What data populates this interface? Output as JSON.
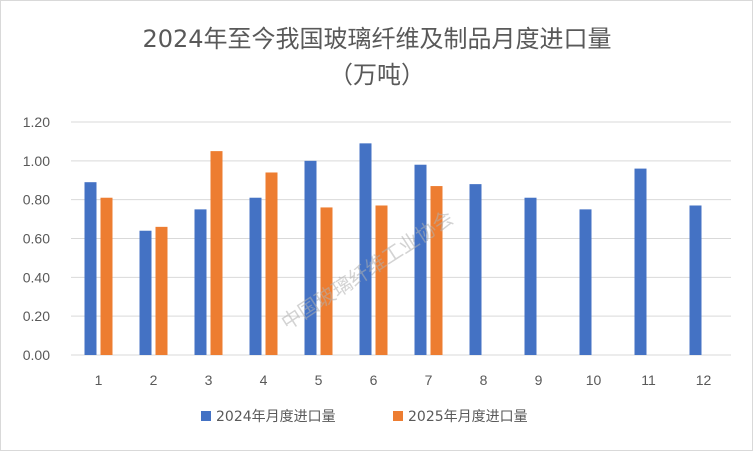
{
  "chart_data": {
    "type": "bar",
    "title": "2024年至今我国玻璃纤维及制品月度进口量",
    "subtitle": "（万吨）",
    "xlabel": "",
    "ylabel": "",
    "categories": [
      "1",
      "2",
      "3",
      "4",
      "5",
      "6",
      "7",
      "8",
      "9",
      "10",
      "11",
      "12"
    ],
    "series": [
      {
        "name": "2024年月度进口量",
        "color": "#4472C4",
        "values": [
          0.89,
          0.64,
          0.75,
          0.81,
          1.0,
          1.09,
          0.98,
          0.88,
          0.81,
          0.75,
          0.96,
          0.77
        ]
      },
      {
        "name": "2025年月度进口量",
        "color": "#ED7D31",
        "values": [
          0.81,
          0.66,
          1.05,
          0.94,
          0.76,
          0.77,
          0.87,
          null,
          null,
          null,
          null,
          null
        ]
      }
    ],
    "ylim": [
      0,
      1.2
    ],
    "yticks": [
      "0.00",
      "0.20",
      "0.40",
      "0.60",
      "0.80",
      "1.00",
      "1.20"
    ],
    "grid": true,
    "legend_position": "bottom",
    "watermark": "中国玻璃纤维工业协会",
    "gridline_color": "#d9d9d9"
  }
}
